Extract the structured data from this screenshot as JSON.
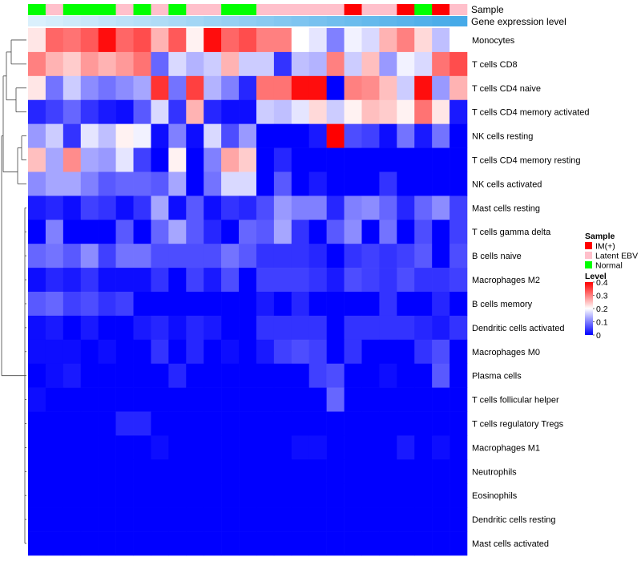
{
  "chart_data": {
    "type": "heatmap",
    "title": "",
    "row_names": [
      "Monocytes",
      "T cells CD8",
      "T cells CD4 naive",
      "T cells CD4 memory activated",
      "NK cells resting",
      "T cells CD4 memory resting",
      "NK cells activated",
      "Mast cells resting",
      "T cells gamma delta",
      "B cells naive",
      "Macrophages M2",
      "B cells memory",
      "Dendritic cells activated",
      "Macrophages M0",
      "Plasma cells",
      "T cells follicular helper",
      "T cells regulatory  Tregs",
      "Macrophages M1",
      "Neutrophils",
      "Eosinophils",
      "Dendritic cells resting",
      "Mast cells activated"
    ],
    "annotation_tracks": {
      "sample_label": "Sample",
      "level_label": "Gene expression level",
      "sample_groups": [
        "Normal",
        "Latent EBV",
        "Normal",
        "Normal",
        "Normal",
        "Latent EBV",
        "Normal",
        "Latent EBV",
        "Normal",
        "Latent EBV",
        "Latent EBV",
        "Normal",
        "Normal",
        "Latent EBV",
        "Latent EBV",
        "Latent EBV",
        "Latent EBV",
        "Latent EBV",
        "IM(+)",
        "Latent EBV",
        "Latent EBV",
        "IM(+)",
        "Normal",
        "IM(+)",
        "Latent EBV"
      ]
    },
    "color_scale": {
      "min": 0,
      "max": 0.4,
      "low_color": "#0000FF",
      "mid_color": "#FFFFFF",
      "high_color": "#FF0000",
      "mid_value": 0.2
    },
    "values": [
      [
        0.22,
        0.32,
        0.31,
        0.33,
        0.39,
        0.32,
        0.34,
        0.26,
        0.33,
        0.21,
        0.39,
        0.32,
        0.34,
        0.3,
        0.3,
        0.2,
        0.18,
        0.1,
        0.19,
        0.17,
        0.26,
        0.3,
        0.23,
        0.15,
        0.2
      ],
      [
        0.3,
        0.26,
        0.24,
        0.28,
        0.26,
        0.28,
        0.31,
        0.08,
        0.17,
        0.14,
        0.16,
        0.26,
        0.16,
        0.16,
        0.04,
        0.15,
        0.14,
        0.3,
        0.16,
        0.25,
        0.12,
        0.19,
        0.17,
        0.31,
        0.34
      ],
      [
        0.22,
        0.09,
        0.16,
        0.11,
        0.09,
        0.11,
        0.13,
        0.36,
        0.09,
        0.35,
        0.14,
        0.1,
        0.03,
        0.31,
        0.31,
        0.39,
        0.39,
        0.0,
        0.3,
        0.29,
        0.25,
        0.16,
        0.39,
        0.12,
        0.26
      ],
      [
        0.03,
        0.05,
        0.08,
        0.04,
        0.02,
        0.01,
        0.07,
        0.17,
        0.04,
        0.26,
        0.03,
        0.01,
        0.01,
        0.16,
        0.15,
        0.18,
        0.23,
        0.16,
        0.21,
        0.25,
        0.24,
        0.21,
        0.31,
        0.22,
        0.02
      ],
      [
        0.12,
        0.16,
        0.04,
        0.18,
        0.15,
        0.21,
        0.19,
        0.01,
        0.1,
        0.01,
        0.17,
        0.06,
        0.12,
        0.0,
        0.0,
        0.0,
        0.02,
        0.4,
        0.06,
        0.05,
        0.01,
        0.09,
        0.02,
        0.09,
        0.0
      ],
      [
        0.25,
        0.13,
        0.29,
        0.13,
        0.12,
        0.18,
        0.05,
        0.0,
        0.21,
        0.0,
        0.1,
        0.27,
        0.24,
        0.0,
        0.03,
        0.0,
        0.0,
        0.0,
        0.0,
        0.0,
        0.0,
        0.0,
        0.0,
        0.0,
        0.0
      ],
      [
        0.11,
        0.13,
        0.13,
        0.1,
        0.07,
        0.08,
        0.08,
        0.07,
        0.13,
        0.0,
        0.09,
        0.17,
        0.17,
        0.0,
        0.07,
        0.0,
        0.02,
        0.0,
        0.0,
        0.0,
        0.04,
        0.0,
        0.0,
        0.0,
        0.0
      ],
      [
        0.02,
        0.03,
        0.01,
        0.05,
        0.04,
        0.01,
        0.04,
        0.13,
        0.01,
        0.07,
        0.01,
        0.04,
        0.03,
        0.06,
        0.12,
        0.1,
        0.1,
        0.03,
        0.1,
        0.11,
        0.08,
        0.03,
        0.08,
        0.11,
        0.05
      ],
      [
        0.0,
        0.1,
        0.0,
        0.0,
        0.0,
        0.07,
        0.0,
        0.08,
        0.13,
        0.07,
        0.03,
        0.0,
        0.08,
        0.07,
        0.13,
        0.04,
        0.0,
        0.07,
        0.11,
        0.0,
        0.09,
        0.0,
        0.06,
        0.0,
        0.05
      ],
      [
        0.08,
        0.09,
        0.07,
        0.11,
        0.05,
        0.09,
        0.09,
        0.06,
        0.06,
        0.06,
        0.06,
        0.09,
        0.07,
        0.04,
        0.04,
        0.04,
        0.03,
        0.0,
        0.04,
        0.05,
        0.04,
        0.05,
        0.07,
        0.0,
        0.06
      ],
      [
        0.01,
        0.03,
        0.02,
        0.04,
        0.01,
        0.01,
        0.01,
        0.04,
        0.0,
        0.05,
        0.02,
        0.06,
        0.0,
        0.05,
        0.05,
        0.05,
        0.04,
        0.02,
        0.06,
        0.05,
        0.04,
        0.06,
        0.04,
        0.04,
        0.05
      ],
      [
        0.07,
        0.08,
        0.05,
        0.06,
        0.04,
        0.05,
        0.0,
        0.0,
        0.0,
        0.0,
        0.0,
        0.0,
        0.0,
        0.02,
        0.0,
        0.03,
        0.0,
        0.0,
        0.0,
        0.0,
        0.04,
        0.0,
        0.0,
        0.03,
        0.0
      ],
      [
        0.01,
        0.02,
        0.0,
        0.02,
        0.0,
        0.0,
        0.02,
        0.03,
        0.01,
        0.03,
        0.02,
        0.0,
        0.0,
        0.04,
        0.04,
        0.04,
        0.04,
        0.0,
        0.04,
        0.04,
        0.04,
        0.04,
        0.03,
        0.02,
        0.04
      ],
      [
        0.01,
        0.01,
        0.01,
        0.0,
        0.01,
        0.0,
        0.0,
        0.04,
        0.0,
        0.03,
        0.0,
        0.01,
        0.0,
        0.02,
        0.05,
        0.06,
        0.05,
        0.0,
        0.04,
        0.0,
        0.0,
        0.0,
        0.04,
        0.06,
        0.0
      ],
      [
        0.0,
        0.01,
        0.02,
        0.0,
        0.0,
        0.0,
        0.0,
        0.0,
        0.03,
        0.0,
        0.0,
        0.0,
        0.0,
        0.0,
        0.0,
        0.0,
        0.05,
        0.06,
        0.0,
        0.0,
        0.01,
        0.0,
        0.0,
        0.07,
        0.0
      ],
      [
        0.01,
        0.0,
        0.0,
        0.0,
        0.0,
        0.0,
        0.0,
        0.0,
        0.0,
        0.0,
        0.0,
        0.0,
        0.0,
        0.0,
        0.0,
        0.0,
        0.0,
        0.08,
        0.0,
        0.0,
        0.0,
        0.0,
        0.0,
        0.0,
        0.0
      ],
      [
        0.0,
        0.0,
        0.0,
        0.0,
        0.0,
        0.03,
        0.03,
        0.0,
        0.0,
        0.0,
        0.0,
        0.0,
        0.0,
        0.0,
        0.0,
        0.0,
        0.0,
        0.0,
        0.0,
        0.0,
        0.0,
        0.0,
        0.0,
        0.0,
        0.0
      ],
      [
        0.0,
        0.0,
        0.0,
        0.0,
        0.0,
        0.0,
        0.0,
        0.01,
        0.0,
        0.0,
        0.0,
        0.0,
        0.0,
        0.0,
        0.0,
        0.01,
        0.01,
        0.0,
        0.0,
        0.0,
        0.0,
        0.02,
        0.0,
        0.01,
        0.0
      ],
      [
        0.0,
        0.0,
        0.0,
        0.0,
        0.0,
        0.0,
        0.0,
        0.0,
        0.0,
        0.0,
        0.0,
        0.0,
        0.0,
        0.0,
        0.0,
        0.0,
        0.0,
        0.0,
        0.0,
        0.0,
        0.0,
        0.0,
        0.0,
        0.0,
        0.0
      ],
      [
        0.0,
        0.0,
        0.0,
        0.0,
        0.0,
        0.0,
        0.0,
        0.0,
        0.0,
        0.0,
        0.0,
        0.0,
        0.0,
        0.0,
        0.0,
        0.0,
        0.0,
        0.0,
        0.0,
        0.0,
        0.0,
        0.0,
        0.0,
        0.0,
        0.0
      ],
      [
        0.0,
        0.0,
        0.0,
        0.0,
        0.0,
        0.0,
        0.0,
        0.0,
        0.0,
        0.0,
        0.0,
        0.0,
        0.0,
        0.0,
        0.0,
        0.0,
        0.0,
        0.0,
        0.0,
        0.0,
        0.0,
        0.0,
        0.0,
        0.0,
        0.0
      ],
      [
        0.0,
        0.0,
        0.0,
        0.0,
        0.0,
        0.0,
        0.0,
        0.0,
        0.0,
        0.0,
        0.0,
        0.0,
        0.0,
        0.0,
        0.0,
        0.0,
        0.0,
        0.0,
        0.0,
        0.0,
        0.0,
        0.0,
        0.0,
        0.0,
        0.0
      ]
    ],
    "sample_legend": {
      "title": "Sample",
      "entries": [
        {
          "label": "IM(+)",
          "color": "#FF0000"
        },
        {
          "label": "Latent EBV",
          "color": "#FFC0CB"
        },
        {
          "label": "Normal",
          "color": "#00FF00"
        }
      ]
    },
    "level_legend": {
      "title": "Level",
      "ticks": [
        "0.4",
        "0.3",
        "0.2",
        "0.1",
        "0"
      ],
      "tick_values": [
        0.4,
        0.3,
        0.2,
        0.1,
        0
      ]
    }
  }
}
